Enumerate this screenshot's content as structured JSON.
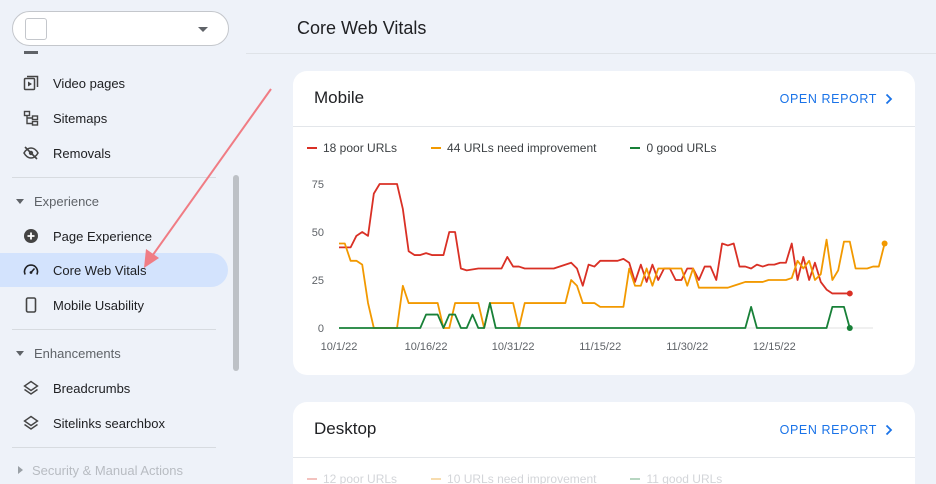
{
  "colors": {
    "poor": "#d93025",
    "needs_improvement": "#f29900",
    "good": "#188038",
    "accent": "#1a73e8",
    "annotation_arrow": "#f07c84"
  },
  "sidebar": {
    "items_top": [
      {
        "label": "Video pages",
        "icon": "video-pages-icon"
      },
      {
        "label": "Sitemaps",
        "icon": "sitemaps-icon"
      },
      {
        "label": "Removals",
        "icon": "removals-icon"
      }
    ],
    "experience": {
      "heading": "Experience",
      "items": [
        {
          "label": "Page Experience",
          "icon": "page-experience-icon"
        },
        {
          "label": "Core Web Vitals",
          "icon": "gauge-icon",
          "active": true
        },
        {
          "label": "Mobile Usability",
          "icon": "phone-icon"
        }
      ]
    },
    "enhancements": {
      "heading": "Enhancements",
      "items": [
        {
          "label": "Breadcrumbs",
          "icon": "layers-icon"
        },
        {
          "label": "Sitelinks searchbox",
          "icon": "layers-icon"
        }
      ]
    },
    "security_heading": "Security & Manual Actions"
  },
  "main": {
    "title": "Core Web Vitals",
    "open_report_label": "OPEN REPORT",
    "mobile": {
      "title": "Mobile",
      "legend": [
        "18 poor URLs",
        "44 URLs need improvement",
        "0 good URLs"
      ]
    },
    "desktop": {
      "title": "Desktop",
      "legend": [
        "12 poor URLs",
        "10 URLs need improvement",
        "11 good URLs"
      ]
    }
  },
  "chart_data": {
    "type": "line",
    "title": "Mobile",
    "xlabel": "",
    "ylabel": "",
    "ylim": [
      0,
      75
    ],
    "y_ticks": [
      0,
      25,
      50,
      75
    ],
    "x_ticks": [
      "10/1/22",
      "10/16/22",
      "10/31/22",
      "11/15/22",
      "11/30/22",
      "12/15/22"
    ],
    "x_range": [
      "2022-10-01",
      "2023-01-01"
    ],
    "grid": false,
    "legend_position": "top-left",
    "series": [
      {
        "name": "18 poor URLs",
        "color": "#d93025",
        "points": [
          [
            0,
            42
          ],
          [
            2,
            42
          ],
          [
            3,
            48
          ],
          [
            4,
            50
          ],
          [
            5,
            48
          ],
          [
            6,
            70
          ],
          [
            7,
            75
          ],
          [
            9,
            75
          ],
          [
            10,
            75
          ],
          [
            11,
            62
          ],
          [
            12,
            40
          ],
          [
            13,
            38
          ],
          [
            14,
            38
          ],
          [
            15,
            39
          ],
          [
            16,
            38
          ],
          [
            17,
            38
          ],
          [
            18,
            38
          ],
          [
            19,
            50
          ],
          [
            20,
            50
          ],
          [
            21,
            31
          ],
          [
            22,
            30
          ],
          [
            24,
            31
          ],
          [
            28,
            31
          ],
          [
            29,
            37
          ],
          [
            30,
            32
          ],
          [
            31,
            32
          ],
          [
            32,
            31
          ],
          [
            34,
            31
          ],
          [
            37,
            31
          ],
          [
            40,
            34
          ],
          [
            41,
            31
          ],
          [
            42,
            22
          ],
          [
            43,
            33
          ],
          [
            44,
            32
          ],
          [
            45,
            35
          ],
          [
            47,
            35
          ],
          [
            48,
            35
          ],
          [
            49,
            36
          ],
          [
            50,
            34
          ],
          [
            51,
            24
          ],
          [
            52,
            33
          ],
          [
            53,
            24
          ],
          [
            54,
            33
          ],
          [
            55,
            25
          ],
          [
            56,
            31
          ],
          [
            57,
            31
          ],
          [
            58,
            25
          ],
          [
            59,
            25
          ],
          [
            60,
            31
          ],
          [
            61,
            31
          ],
          [
            62,
            25
          ],
          [
            63,
            32
          ],
          [
            64,
            32
          ],
          [
            65,
            25
          ],
          [
            66,
            44
          ],
          [
            67,
            43
          ],
          [
            68,
            44
          ],
          [
            69,
            32
          ],
          [
            70,
            32
          ],
          [
            71,
            31
          ],
          [
            72,
            33
          ],
          [
            73,
            32
          ],
          [
            74,
            33
          ],
          [
            75,
            33
          ],
          [
            76,
            34
          ],
          [
            77,
            34
          ],
          [
            78,
            44
          ],
          [
            79,
            25
          ],
          [
            80,
            37
          ],
          [
            81,
            25
          ],
          [
            82,
            34
          ],
          [
            83,
            24
          ],
          [
            84,
            20
          ],
          [
            85,
            18
          ],
          [
            87,
            18
          ],
          [
            88,
            18
          ]
        ],
        "end_value": 18
      },
      {
        "name": "44 URLs need improvement",
        "color": "#f29900",
        "points": [
          [
            0,
            44
          ],
          [
            1,
            44
          ],
          [
            2,
            35
          ],
          [
            3,
            35
          ],
          [
            4,
            33
          ],
          [
            5,
            13
          ],
          [
            6,
            0
          ],
          [
            7,
            0
          ],
          [
            9,
            0
          ],
          [
            10,
            0
          ],
          [
            11,
            22
          ],
          [
            12,
            13
          ],
          [
            13,
            13
          ],
          [
            14,
            13
          ],
          [
            15,
            13
          ],
          [
            16,
            13
          ],
          [
            17,
            13
          ],
          [
            18,
            0
          ],
          [
            19,
            0
          ],
          [
            20,
            13
          ],
          [
            21,
            13
          ],
          [
            22,
            13
          ],
          [
            23,
            13
          ],
          [
            24,
            13
          ],
          [
            25,
            0
          ],
          [
            26,
            13
          ],
          [
            27,
            13
          ],
          [
            28,
            13
          ],
          [
            29,
            13
          ],
          [
            30,
            13
          ],
          [
            31,
            0
          ],
          [
            32,
            13
          ],
          [
            33,
            13
          ],
          [
            34,
            13
          ],
          [
            35,
            13
          ],
          [
            36,
            13
          ],
          [
            37,
            13
          ],
          [
            38,
            13
          ],
          [
            39,
            13
          ],
          [
            40,
            25
          ],
          [
            41,
            22
          ],
          [
            42,
            13
          ],
          [
            43,
            13
          ],
          [
            44,
            13
          ],
          [
            45,
            11
          ],
          [
            46,
            11
          ],
          [
            47,
            11
          ],
          [
            48,
            11
          ],
          [
            49,
            11
          ],
          [
            50,
            31
          ],
          [
            51,
            22
          ],
          [
            52,
            22
          ],
          [
            53,
            31
          ],
          [
            54,
            22
          ],
          [
            55,
            31
          ],
          [
            56,
            31
          ],
          [
            57,
            31
          ],
          [
            58,
            31
          ],
          [
            59,
            31
          ],
          [
            60,
            22
          ],
          [
            61,
            31
          ],
          [
            62,
            21
          ],
          [
            63,
            21
          ],
          [
            64,
            21
          ],
          [
            65,
            21
          ],
          [
            66,
            21
          ],
          [
            67,
            21
          ],
          [
            68,
            22
          ],
          [
            69,
            23
          ],
          [
            70,
            24
          ],
          [
            71,
            24
          ],
          [
            72,
            24
          ],
          [
            73,
            24
          ],
          [
            74,
            25
          ],
          [
            75,
            25
          ],
          [
            76,
            25
          ],
          [
            77,
            25
          ],
          [
            78,
            26
          ],
          [
            79,
            35
          ],
          [
            80,
            31
          ],
          [
            81,
            35
          ],
          [
            82,
            25
          ],
          [
            83,
            28
          ],
          [
            84,
            46
          ],
          [
            85,
            25
          ],
          [
            86,
            30
          ],
          [
            87,
            45
          ],
          [
            88,
            45
          ],
          [
            89,
            31
          ],
          [
            90,
            31
          ],
          [
            91,
            31
          ],
          [
            92,
            32
          ],
          [
            93,
            32
          ],
          [
            94,
            44
          ]
        ],
        "end_value": 44
      },
      {
        "name": "0 good URLs",
        "color": "#188038",
        "points": [
          [
            0,
            0
          ],
          [
            13,
            0
          ],
          [
            14,
            0
          ],
          [
            15,
            7
          ],
          [
            16,
            7
          ],
          [
            17,
            7
          ],
          [
            18,
            0
          ],
          [
            19,
            7
          ],
          [
            20,
            7
          ],
          [
            21,
            0
          ],
          [
            22,
            0
          ],
          [
            23,
            7
          ],
          [
            24,
            0
          ],
          [
            25,
            0
          ],
          [
            26,
            13
          ],
          [
            27,
            0
          ],
          [
            28,
            0
          ],
          [
            70,
            0
          ],
          [
            71,
            11
          ],
          [
            72,
            0
          ],
          [
            73,
            0
          ],
          [
            84,
            0
          ],
          [
            85,
            11
          ],
          [
            86,
            11
          ],
          [
            87,
            11
          ],
          [
            88,
            0
          ]
        ],
        "end_value": 0
      }
    ]
  }
}
